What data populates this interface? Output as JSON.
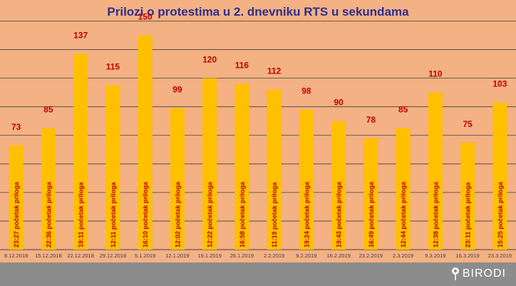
{
  "colors": {
    "background": "#f4b183",
    "bar": "#ffc000",
    "title": "#2e2e8f",
    "value_label": "#c00000",
    "bar_text": "#c00000",
    "gridline": "#404040",
    "footer": "#8c8c8c"
  },
  "brand": {
    "name": "BIRODI",
    "icon": "map-pin-icon"
  },
  "chart_data": {
    "type": "bar",
    "title": "Prilozi o protestima u 2. dnevniku RTS u sekundama",
    "xlabel": "",
    "ylabel": "",
    "ylim": [
      0,
      160
    ],
    "grid": true,
    "legend": "none",
    "categories": [
      "8.12.2018",
      "15.12.2018",
      "22.12.2018",
      "29.12.2018",
      "5.1.2019",
      "12.1.2019",
      "19.1.2019",
      "26.1.2019",
      "2.2.2019",
      "9.2.2019",
      "16.2.2019",
      "23.2.2019",
      "2.3.2019",
      "9.3.2019",
      "16.3.2019",
      "23.3.2019"
    ],
    "values": [
      73,
      85,
      137,
      115,
      150,
      99,
      120,
      116,
      112,
      98,
      90,
      78,
      85,
      110,
      75,
      103
    ],
    "bar_labels": [
      "23:27 početak priloga",
      "22:36 početak priloga",
      "19:11 početak priloga",
      "12:11 početak priloga",
      "16:10 početak priloga",
      "12:02 početak priloga",
      "12:22 početak priloga",
      "16:58 početak priloga",
      "11:19 početak priloga",
      "19:24 početak priloga",
      "19:43 početak priloga",
      "16:49 početak priloga",
      "12:44 početak priloga",
      "12:38 početak priloga",
      "23:11 početak priloga",
      "15:25 početak priloga"
    ]
  }
}
